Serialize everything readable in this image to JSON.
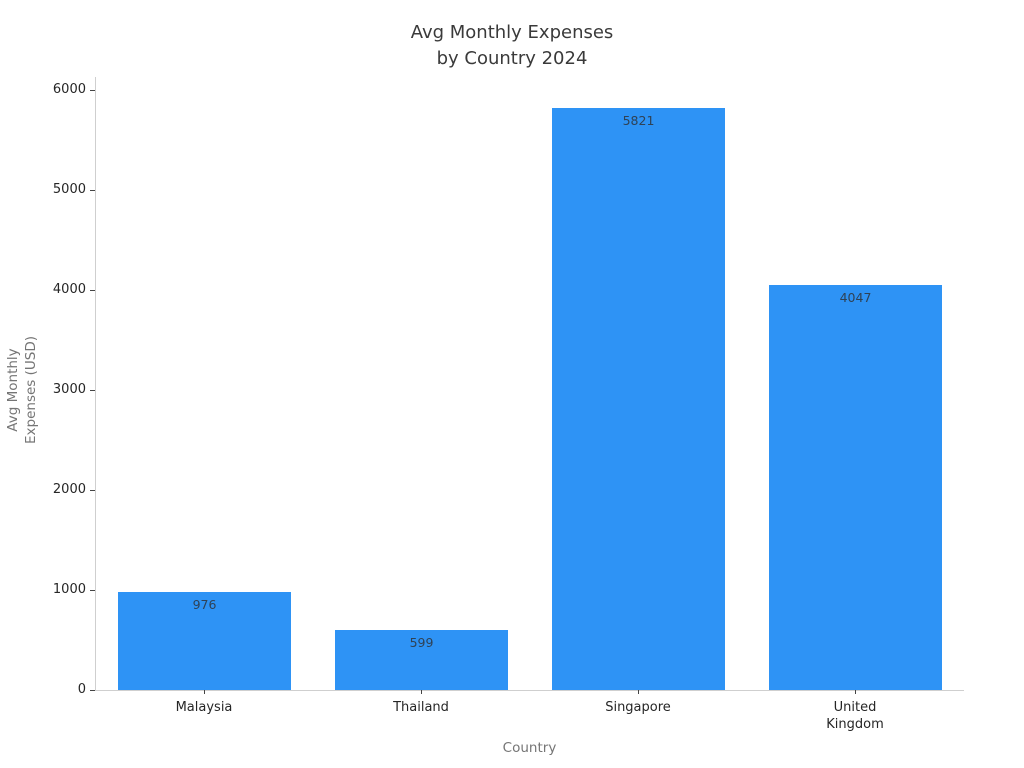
{
  "chart_data": {
    "type": "bar",
    "title": "Avg Monthly Expenses\nby Country 2024",
    "xlabel": "Country",
    "ylabel": "Avg Monthly\nExpenses (USD)",
    "categories": [
      "Malaysia",
      "Thailand",
      "Singapore",
      "United Kingdom"
    ],
    "values": [
      976,
      599,
      5821,
      4047
    ],
    "bar_value_labels": [
      "976",
      "599",
      "5821",
      "4047"
    ],
    "ylim": [
      0,
      6000
    ],
    "yticks": [
      0,
      1000,
      2000,
      3000,
      4000,
      5000,
      6000
    ],
    "grid": false,
    "legend": false,
    "bar_color": "#2E93F5",
    "colors": {
      "bar": "#2E93F5",
      "bar_value_label": "#2F4256",
      "title": "#3A3A3A",
      "tick_label": "#262626",
      "axis_title": "#757575",
      "spine": "#CFCFCF",
      "tick_mark": "#444444",
      "background": "#FFFFFF"
    }
  }
}
